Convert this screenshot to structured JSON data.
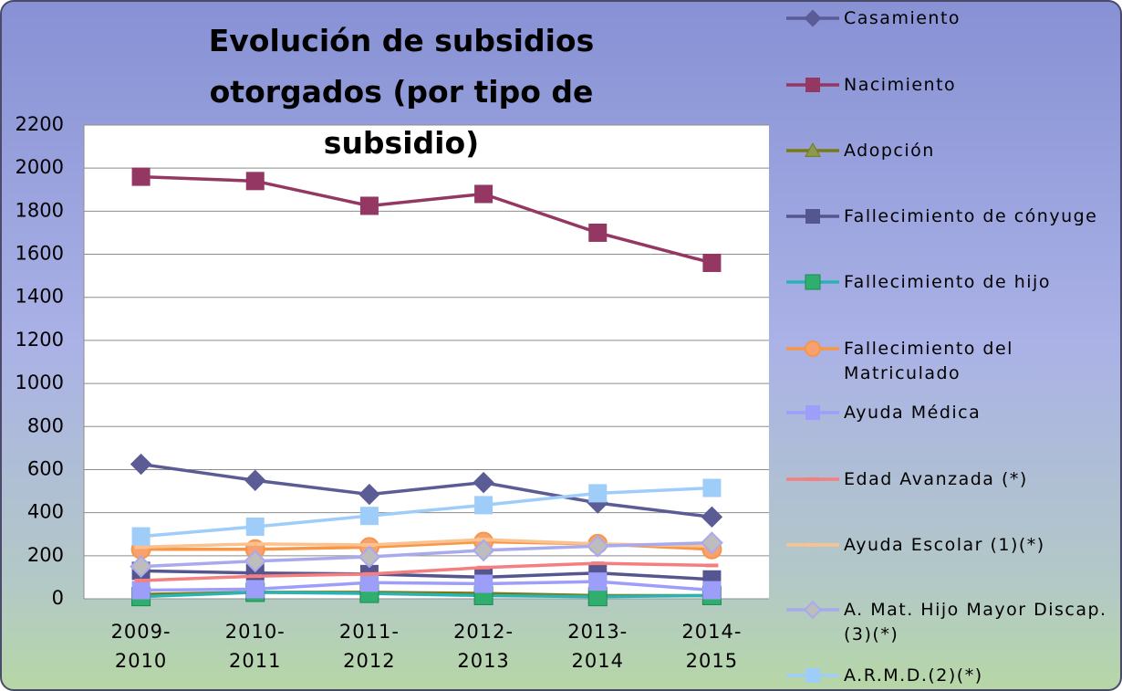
{
  "chart_data": {
    "type": "line",
    "title": "Evolución de subsidios otorgados (por tipo de subsidio)",
    "categories": [
      "2009-2010",
      "2010-2011",
      "2011-2012",
      "2012-2013",
      "2013-2014",
      "2014-2015"
    ],
    "ylim": [
      0,
      2200
    ],
    "yticks": [
      0,
      200,
      400,
      600,
      800,
      1000,
      1200,
      1400,
      1600,
      1800,
      2000,
      2200
    ],
    "grid": true,
    "legend": "right",
    "series": [
      {
        "name": "Casamiento",
        "color": "#5b5b96",
        "marker": "diamond",
        "values": [
          625,
          550,
          485,
          540,
          445,
          380
        ]
      },
      {
        "name": "Nacimiento",
        "color": "#953763",
        "marker": "square",
        "values": [
          1960,
          1940,
          1825,
          1880,
          1700,
          1560
        ]
      },
      {
        "name": "Adopción",
        "color": "#7a7a10",
        "marker": "triangle",
        "values": [
          20,
          30,
          30,
          25,
          15,
          15
        ]
      },
      {
        "name": "Fallecimiento de cónyuge",
        "color": "#55558f",
        "marker": "square",
        "values": [
          130,
          120,
          115,
          100,
          120,
          90
        ]
      },
      {
        "name": "Fallecimiento de hijo",
        "color": "#2bb3b3",
        "marker": "asterisk",
        "values": [
          10,
          30,
          25,
          15,
          10,
          15
        ]
      },
      {
        "name": "Fallecimiento del Matriculado",
        "color": "#f79646",
        "marker": "circle",
        "values": [
          230,
          230,
          240,
          265,
          255,
          230
        ]
      },
      {
        "name": "Ayuda Médica",
        "color": "#9d9dfa",
        "marker": "square",
        "values": [
          40,
          45,
          75,
          70,
          80,
          40
        ]
      },
      {
        "name": "Edad Avanzada (*)",
        "color": "#f57f7f",
        "marker": "dash",
        "values": [
          85,
          105,
          115,
          145,
          165,
          155
        ]
      },
      {
        "name": "Ayuda Escolar (1)(*)",
        "color": "#fbc28f",
        "marker": "dash",
        "values": [
          240,
          255,
          250,
          275,
          255,
          245
        ]
      },
      {
        "name": "A. Mat. Hijo Mayor Discap.(3)(*)",
        "color": "#a9a9ee",
        "marker": "diamond-grey",
        "values": [
          150,
          175,
          195,
          225,
          245,
          260
        ]
      },
      {
        "name": "A.R.M.D.(2)(*)",
        "color": "#9fcdfa",
        "marker": "square",
        "values": [
          290,
          335,
          385,
          435,
          490,
          515
        ]
      }
    ]
  }
}
